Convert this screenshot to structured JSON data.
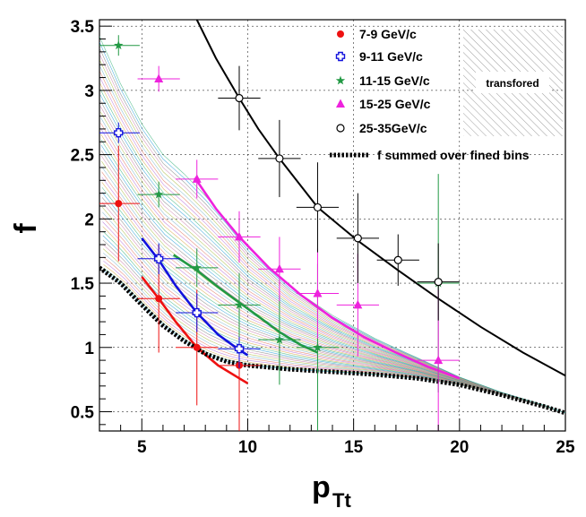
{
  "chart_data": {
    "type": "scatter",
    "title": "",
    "xlabel": "p",
    "xlabel_sub": "Tt",
    "ylabel": "f",
    "xlim": [
      3,
      25
    ],
    "ylim": [
      0.35,
      3.55
    ],
    "grid": true,
    "x_ticks": [
      5,
      10,
      15,
      20,
      25
    ],
    "y_ticks": [
      0.5,
      1,
      1.5,
      2,
      2.5,
      3,
      3.5
    ],
    "x_tick_labels": [
      "5",
      "10",
      "15",
      "20",
      "25"
    ],
    "y_tick_labels": [
      "0.5",
      "1",
      "1.5",
      "2",
      "2.5",
      "3",
      "3.5"
    ],
    "legend_position": "top-right",
    "shaded_box_label": "transfored",
    "series": [
      {
        "name": "7-9 GeV/c",
        "marker": "filled-circle",
        "color": "#ee1111",
        "points": [
          {
            "x": 3.9,
            "y": 2.12,
            "xerr": 1.0,
            "yerr": 0.45
          },
          {
            "x": 5.8,
            "y": 1.38,
            "xerr": 1.0,
            "yerr": 0.42
          },
          {
            "x": 7.6,
            "y": 1.0,
            "xerr": 1.0,
            "yerr": 0.45
          },
          {
            "x": 9.6,
            "y": 0.86,
            "xerr": 1.0,
            "yerr": 0.55
          }
        ],
        "curve_x": [
          5.0,
          5.8,
          6.6,
          7.6,
          8.6,
          9.6,
          10.0
        ],
        "curve_y": [
          1.55,
          1.38,
          1.2,
          1.0,
          0.86,
          0.76,
          0.72
        ]
      },
      {
        "name": "9-11 GeV/c",
        "marker": "open-cross",
        "color": "#1111dd",
        "points": [
          {
            "x": 3.9,
            "y": 2.67,
            "xerr": 1.0,
            "yerr": 0.08
          },
          {
            "x": 5.8,
            "y": 1.69,
            "xerr": 1.0,
            "yerr": 0.12
          },
          {
            "x": 7.6,
            "y": 1.27,
            "xerr": 1.0,
            "yerr": 0.15
          },
          {
            "x": 9.6,
            "y": 0.99,
            "xerr": 1.0,
            "yerr": 0.15
          }
        ],
        "curve_x": [
          5.0,
          5.8,
          6.6,
          7.6,
          8.6,
          9.6,
          10.0
        ],
        "curve_y": [
          1.85,
          1.68,
          1.48,
          1.27,
          1.1,
          0.98,
          0.94
        ]
      },
      {
        "name": "11-15 GeV/c",
        "marker": "star",
        "color": "#229944",
        "points": [
          {
            "x": 3.9,
            "y": 3.35,
            "xerr": 1.0,
            "yerr": 0.08
          },
          {
            "x": 5.8,
            "y": 2.19,
            "xerr": 1.0,
            "yerr": 0.1
          },
          {
            "x": 7.6,
            "y": 1.62,
            "xerr": 1.0,
            "yerr": 0.15
          },
          {
            "x": 9.6,
            "y": 1.33,
            "xerr": 1.0,
            "yerr": 0.25
          },
          {
            "x": 11.5,
            "y": 1.06,
            "xerr": 1.0,
            "yerr": 0.35
          },
          {
            "x": 13.3,
            "y": 1.0,
            "xerr": 1.0,
            "yerr": 0.65
          },
          {
            "x": 19.0,
            "y": 1.5,
            "xerr": 1.0,
            "yerr": 0.85
          }
        ],
        "curve_x": [
          6.5,
          7.6,
          8.6,
          9.6,
          10.6,
          11.5,
          12.5,
          13.3
        ],
        "curve_y": [
          1.72,
          1.6,
          1.47,
          1.35,
          1.23,
          1.12,
          1.02,
          0.96
        ]
      },
      {
        "name": "15-25 GeV/c",
        "marker": "filled-triangle",
        "color": "#ee22dd",
        "points": [
          {
            "x": 5.8,
            "y": 3.09,
            "xerr": 1.0,
            "yerr": 0.1
          },
          {
            "x": 7.6,
            "y": 2.31,
            "xerr": 1.0,
            "yerr": 0.15
          },
          {
            "x": 9.6,
            "y": 1.86,
            "xerr": 1.0,
            "yerr": 0.2
          },
          {
            "x": 11.5,
            "y": 1.61,
            "xerr": 1.0,
            "yerr": 0.25
          },
          {
            "x": 13.3,
            "y": 1.42,
            "xerr": 1.0,
            "yerr": 0.35
          },
          {
            "x": 15.2,
            "y": 1.33,
            "xerr": 1.0,
            "yerr": 0.4
          },
          {
            "x": 19.0,
            "y": 0.9,
            "xerr": 1.0,
            "yerr": 0.55
          }
        ],
        "curve_x": [
          7.5,
          8.5,
          9.6,
          11.0,
          12.5,
          14.0,
          15.5,
          17.0,
          18.5,
          20.0
        ],
        "curve_y": [
          2.32,
          2.08,
          1.86,
          1.62,
          1.41,
          1.23,
          1.08,
          0.96,
          0.85,
          0.76
        ]
      },
      {
        "name": "25-35GeV/c",
        "marker": "open-circle",
        "color": "#000000",
        "points": [
          {
            "x": 9.6,
            "y": 2.94,
            "xerr": 1.0,
            "yerr": 0.25
          },
          {
            "x": 11.5,
            "y": 2.47,
            "xerr": 1.0,
            "yerr": 0.3
          },
          {
            "x": 13.3,
            "y": 2.09,
            "xerr": 1.0,
            "yerr": 0.35
          },
          {
            "x": 15.2,
            "y": 1.85,
            "xerr": 1.0,
            "yerr": 0.35
          },
          {
            "x": 17.1,
            "y": 1.68,
            "xerr": 1.0,
            "yerr": 0.2
          },
          {
            "x": 19.0,
            "y": 1.51,
            "xerr": 1.0,
            "yerr": 0.3
          }
        ],
        "curve_x": [
          7.6,
          8.5,
          9.6,
          10.5,
          11.5,
          13.3,
          15.2,
          17.1,
          19.0,
          21.0,
          23.0,
          25.0
        ],
        "curve_y": [
          3.55,
          3.25,
          2.94,
          2.7,
          2.47,
          2.09,
          1.83,
          1.6,
          1.38,
          1.16,
          0.96,
          0.78
        ]
      },
      {
        "name": "f summed over fined bins",
        "marker": "thick-dotted-line",
        "color": "#000000",
        "curve_x": [
          3,
          4,
          5,
          6,
          7,
          8,
          9,
          10,
          12,
          14,
          16,
          18,
          20,
          22,
          24,
          25
        ],
        "curve_y": [
          1.62,
          1.5,
          1.33,
          1.17,
          1.05,
          0.95,
          0.89,
          0.86,
          0.83,
          0.81,
          0.79,
          0.76,
          0.71,
          0.63,
          0.54,
          0.49
        ]
      }
    ]
  }
}
